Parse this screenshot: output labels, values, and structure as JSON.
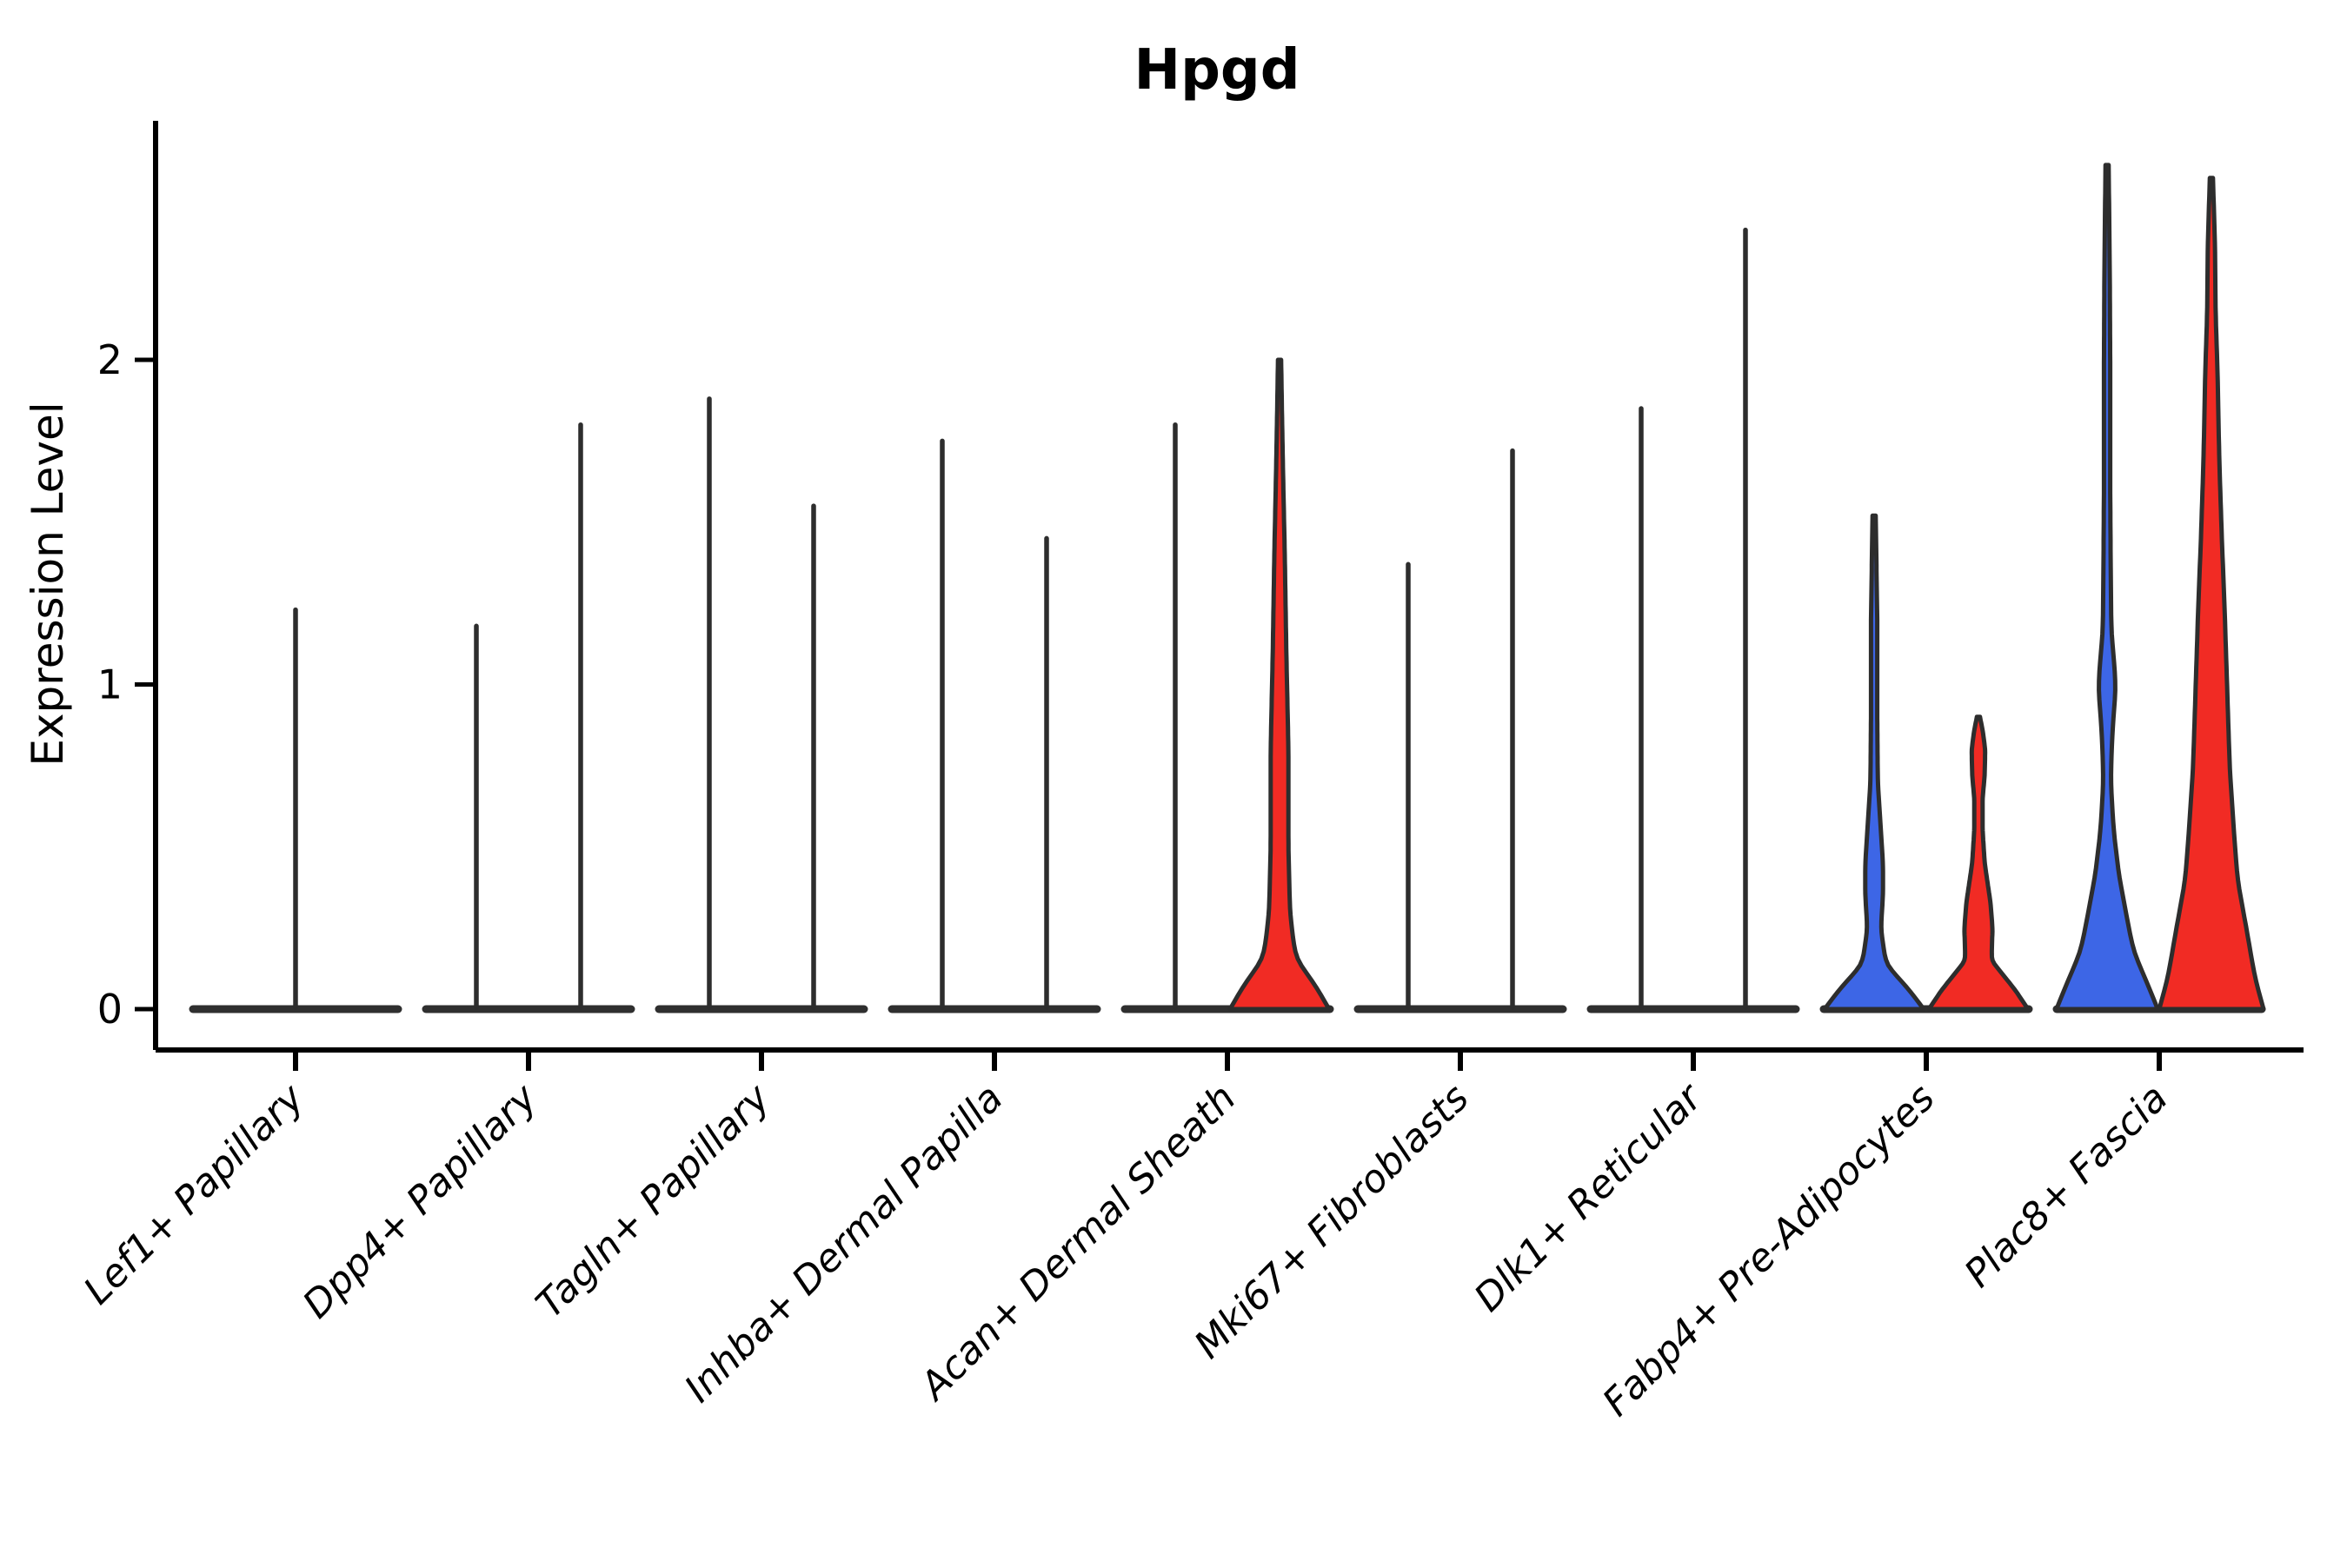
{
  "title": "Hpgd",
  "y_axis": {
    "label": "Expression Level",
    "ticks": [
      0,
      1,
      2
    ]
  },
  "colors": {
    "blue": "#3D66E6",
    "red": "#F12B24",
    "outline": "#2D2D2D",
    "baseline": "#2F2F2F",
    "axis": "#000000"
  },
  "chart_data": {
    "type": "violin",
    "title": "Hpgd",
    "xlabel": "",
    "ylabel": "Expression Level",
    "yticks": [
      0,
      1,
      2
    ],
    "ylim": [
      0,
      2.74
    ],
    "grid": false,
    "legend": "none",
    "categories": [
      "Lef1+ Papillary",
      "Dpp4+ Papillary",
      "Tagln+ Papillary",
      "Inhba+ Dermal Papilla",
      "Acan+ Dermal Sheath",
      "Mki67+ Fibroblasts",
      "Dlk1+ Reticular",
      "Fabp4+ Pre-Adipocytes",
      "Plac8+ Fascia"
    ],
    "groups": [
      "blue",
      "red"
    ],
    "note": "Each category shows a left (blue group) and right (red group) violin; most distributions are concentrated at 0 with a thin density spike up to max_expression.",
    "violins": [
      {
        "category": "Lef1+ Papillary",
        "items": [
          {
            "pos": "center",
            "series": null,
            "max_expression": 1.23,
            "profile": null
          }
        ]
      },
      {
        "category": "Dpp4+ Papillary",
        "items": [
          {
            "pos": "left",
            "series": "blue",
            "max_expression": 1.18,
            "profile": null
          },
          {
            "pos": "right",
            "series": "red",
            "max_expression": 1.8,
            "profile": null
          }
        ]
      },
      {
        "category": "Tagln+ Papillary",
        "items": [
          {
            "pos": "left",
            "series": "blue",
            "max_expression": 1.88,
            "profile": null
          },
          {
            "pos": "right",
            "series": "red",
            "max_expression": 1.55,
            "profile": null
          }
        ]
      },
      {
        "category": "Inhba+ Dermal Papilla",
        "items": [
          {
            "pos": "left",
            "series": "blue",
            "max_expression": 1.75,
            "profile": null
          },
          {
            "pos": "right",
            "series": "red",
            "max_expression": 1.45,
            "profile": null
          }
        ]
      },
      {
        "category": "Acan+ Dermal Sheath",
        "items": [
          {
            "pos": "left",
            "series": "blue",
            "max_expression": 1.8,
            "profile": null
          },
          {
            "pos": "right",
            "series": "red",
            "max_expression": 2.0,
            "profile": [
              [
                0,
                0.95
              ],
              [
                0.07,
                0.7
              ],
              [
                0.16,
                0.3
              ],
              [
                0.3,
                0.2
              ],
              [
                0.5,
                0.17
              ],
              [
                0.8,
                0.17
              ],
              [
                1.1,
                0.13
              ],
              [
                1.4,
                0.1
              ],
              [
                1.63,
                0.07
              ],
              [
                1.8,
                0.05
              ],
              [
                2.0,
                0.03
              ]
            ]
          }
        ]
      },
      {
        "category": "Mki67+ Fibroblasts",
        "items": [
          {
            "pos": "left",
            "series": "blue",
            "max_expression": 1.37,
            "profile": null
          },
          {
            "pos": "right",
            "series": "red",
            "max_expression": 1.72,
            "profile": null
          }
        ]
      },
      {
        "category": "Dlk1+ Reticular",
        "items": [
          {
            "pos": "left",
            "series": "blue",
            "max_expression": 1.85,
            "profile": null
          },
          {
            "pos": "right",
            "series": "red",
            "max_expression": 2.4,
            "profile": null
          }
        ]
      },
      {
        "category": "Fabp4+ Pre-Adipocytes",
        "items": [
          {
            "pos": "left",
            "series": "blue",
            "max_expression": 1.52,
            "profile": [
              [
                0,
                0.95
              ],
              [
                0.06,
                0.67
              ],
              [
                0.14,
                0.22
              ],
              [
                0.25,
                0.13
              ],
              [
                0.35,
                0.17
              ],
              [
                0.45,
                0.17
              ],
              [
                0.55,
                0.13
              ],
              [
                0.7,
                0.07
              ],
              [
                0.9,
                0.06
              ],
              [
                1.2,
                0.06
              ],
              [
                1.52,
                0.03
              ]
            ]
          },
          {
            "pos": "right",
            "series": "red",
            "max_expression": 0.9,
            "profile": [
              [
                0,
                0.95
              ],
              [
                0.06,
                0.7
              ],
              [
                0.15,
                0.25
              ],
              [
                0.25,
                0.27
              ],
              [
                0.33,
                0.23
              ],
              [
                0.45,
                0.12
              ],
              [
                0.55,
                0.08
              ],
              [
                0.65,
                0.08
              ],
              [
                0.72,
                0.12
              ],
              [
                0.8,
                0.13
              ],
              [
                0.86,
                0.08
              ],
              [
                0.9,
                0.03
              ]
            ]
          }
        ]
      },
      {
        "category": "Plac8+ Fascia",
        "items": [
          {
            "pos": "left",
            "series": "blue",
            "max_expression": 2.6,
            "profile": [
              [
                0,
                0.97
              ],
              [
                0.08,
                0.77
              ],
              [
                0.18,
                0.5
              ],
              [
                0.29,
                0.37
              ],
              [
                0.42,
                0.22
              ],
              [
                0.56,
                0.12
              ],
              [
                0.71,
                0.07
              ],
              [
                0.85,
                0.1
              ],
              [
                1.0,
                0.17
              ],
              [
                1.17,
                0.08
              ],
              [
                1.35,
                0.07
              ],
              [
                1.6,
                0.06
              ],
              [
                2.0,
                0.06
              ],
              [
                2.3,
                0.05
              ],
              [
                2.6,
                0.03
              ]
            ]
          },
          {
            "pos": "right",
            "series": "red",
            "max_expression": 2.56,
            "profile": [
              [
                0,
                1.0
              ],
              [
                0.1,
                0.83
              ],
              [
                0.25,
                0.67
              ],
              [
                0.4,
                0.5
              ],
              [
                0.55,
                0.43
              ],
              [
                0.75,
                0.35
              ],
              [
                1.0,
                0.3
              ],
              [
                1.25,
                0.25
              ],
              [
                1.45,
                0.2
              ],
              [
                1.7,
                0.15
              ],
              [
                1.95,
                0.12
              ],
              [
                2.15,
                0.08
              ],
              [
                2.35,
                0.07
              ],
              [
                2.56,
                0.03
              ]
            ]
          }
        ]
      }
    ]
  }
}
